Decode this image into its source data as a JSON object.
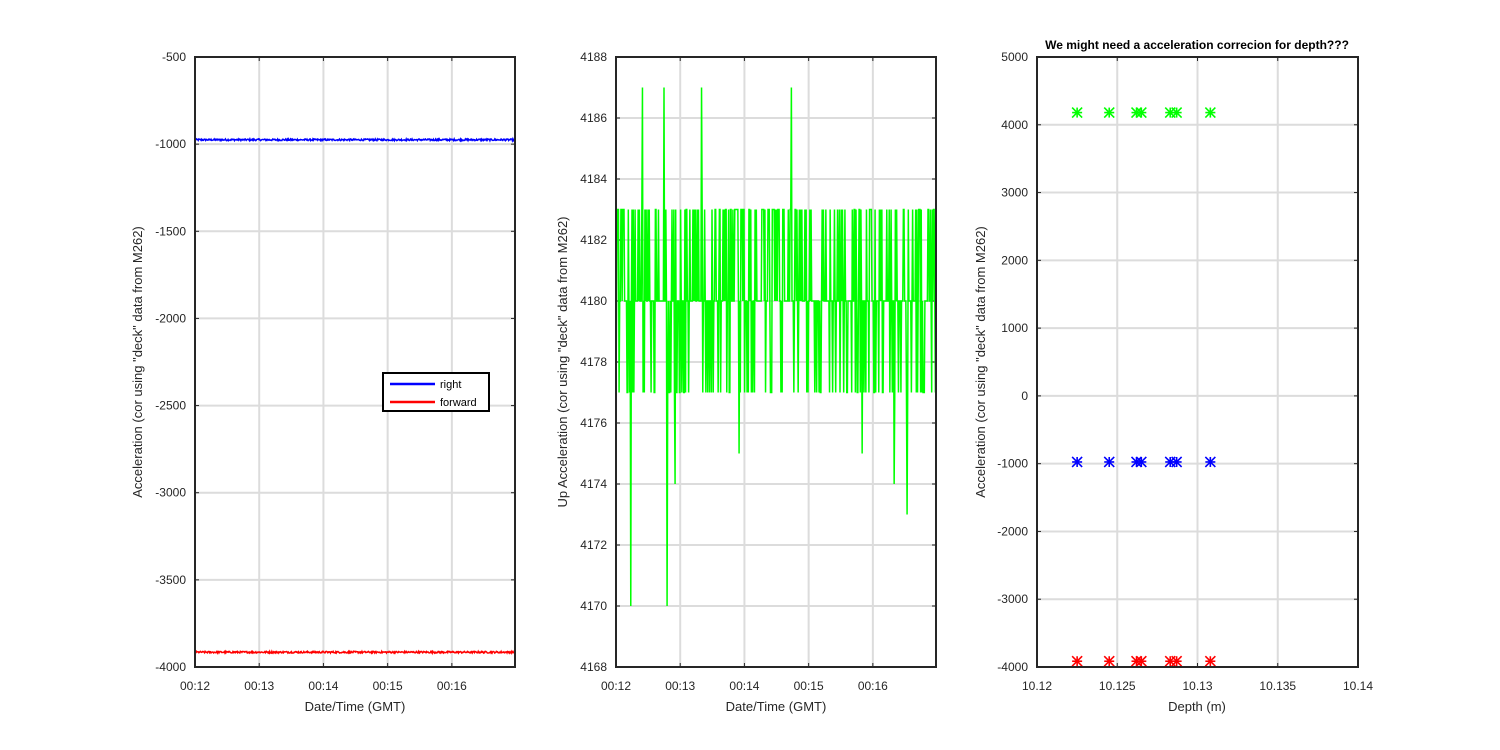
{
  "chart_data": [
    {
      "type": "line",
      "title": "",
      "xlabel": "Date/Time (GMT)",
      "ylabel": "Acceleration (cor using \"deck\" data from M262)",
      "x_ticks": [
        "00:12",
        "00:13",
        "00:14",
        "00:15",
        "00:16"
      ],
      "y_ticks": [
        -500,
        -1000,
        -1500,
        -2000,
        -2500,
        -3000,
        -3500,
        -4000
      ],
      "xlim": [
        "00:12:00",
        "00:16:59"
      ],
      "ylim": [
        -4000,
        -500
      ],
      "grid": true,
      "legend_position": "center-right",
      "series": [
        {
          "name": "right",
          "color": "#0000ff",
          "x_range": [
            "00:12:00",
            "00:16:59"
          ],
          "mean": -975,
          "noise": 5
        },
        {
          "name": "forward",
          "color": "#ff0000",
          "x_range": [
            "00:12:00",
            "00:16:59"
          ],
          "mean": -3915,
          "noise": 5
        }
      ]
    },
    {
      "type": "line",
      "title": "",
      "xlabel": "Date/Time (GMT)",
      "ylabel": "Up Acceleration (cor using \"deck\" data from M262)",
      "x_ticks": [
        "00:12",
        "00:13",
        "00:14",
        "00:15",
        "00:16"
      ],
      "y_ticks": [
        4188,
        4186,
        4184,
        4182,
        4180,
        4178,
        4176,
        4174,
        4172,
        4170,
        4168
      ],
      "xlim": [
        "00:12:00",
        "00:16:59"
      ],
      "ylim": [
        4168,
        4188
      ],
      "grid": true,
      "series": [
        {
          "name": "up",
          "color": "#00ff00",
          "x_range": [
            "00:12:00",
            "00:16:59"
          ],
          "levels": [
            4180,
            4183,
            4177
          ],
          "spikes": [
            {
              "t": "00:12:14",
              "v": 4170
            },
            {
              "t": "00:12:25",
              "v": 4187
            },
            {
              "t": "00:12:45",
              "v": 4187
            },
            {
              "t": "00:12:48",
              "v": 4170
            },
            {
              "t": "00:13:20",
              "v": 4187
            },
            {
              "t": "00:12:55",
              "v": 4174
            },
            {
              "t": "00:14:44",
              "v": 4187
            },
            {
              "t": "00:16:32",
              "v": 4173
            },
            {
              "t": "00:13:55",
              "v": 4175
            },
            {
              "t": "00:15:50",
              "v": 4175
            },
            {
              "t": "00:16:20",
              "v": 4174
            }
          ]
        }
      ]
    },
    {
      "type": "scatter",
      "title": "We might need a acceleration correcion for depth???",
      "xlabel": "Depth (m)",
      "ylabel": "Acceleration (cor using \"deck\" data from M262)",
      "x_ticks": [
        "10.12",
        "10.125",
        "10.13",
        "10.135",
        "10.14"
      ],
      "y_ticks": [
        5000,
        4000,
        3000,
        2000,
        1000,
        0,
        -1000,
        -2000,
        -3000,
        -4000
      ],
      "xlim": [
        10.12,
        10.14
      ],
      "ylim": [
        -4000,
        5000
      ],
      "grid": true,
      "x": [
        10.1225,
        10.1245,
        10.1262,
        10.1265,
        10.1283,
        10.1287,
        10.1308
      ],
      "series": [
        {
          "color": "#00ff00",
          "values": [
            4180,
            4180,
            4180,
            4180,
            4180,
            4180,
            4180
          ]
        },
        {
          "color": "#0000ff",
          "values": [
            -975,
            -975,
            -975,
            -975,
            -975,
            -975,
            -975
          ]
        },
        {
          "color": "#ff0000",
          "values": [
            -3915,
            -3915,
            -3915,
            -3915,
            -3915,
            -3915,
            -3915
          ]
        }
      ]
    }
  ]
}
